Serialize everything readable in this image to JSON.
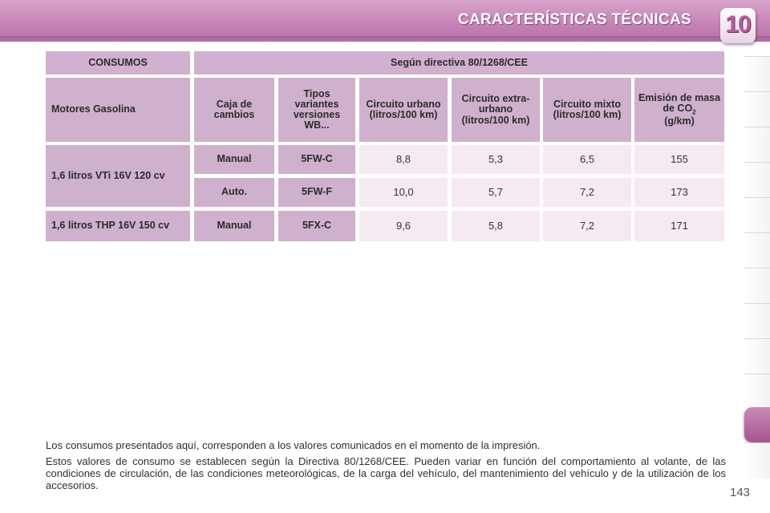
{
  "header": {
    "title": "CARACTERÍSTICAS TÉCNICAS",
    "chapter": "10"
  },
  "table": {
    "top_left": "CONSUMOS",
    "top_right": "Según directiva 80/1268/CEE",
    "col_headers": {
      "engine": "Motores Gasolina",
      "gearbox": "Caja de cambios",
      "types": "Tipos variantes versiones WB...",
      "urban": "Circuito urbano (litros/100 km)",
      "extra_urban": "Circuito extra-urbano (litros/100 km)",
      "mixed": "Circuito mixto (litros/100 km)",
      "co2_prefix": "Emisión de masa de CO",
      "co2_sub": "2",
      "co2_unit": "(g/km)"
    },
    "rows": [
      {
        "engine": "1,6 litros VTi 16V 120 cv",
        "gearbox": "Manual",
        "type": "5FW-C",
        "urban": "8,8",
        "extra_urban": "5,3",
        "mixed": "6,5",
        "co2": "155"
      },
      {
        "engine": "",
        "gearbox": "Auto.",
        "type": "5FW-F",
        "urban": "10,0",
        "extra_urban": "5,7",
        "mixed": "7,2",
        "co2": "173"
      },
      {
        "engine": "1,6 litros THP 16V 150 cv",
        "gearbox": "Manual",
        "type": "5FX-C",
        "urban": "9,6",
        "extra_urban": "5,8",
        "mixed": "7,2",
        "co2": "171"
      }
    ]
  },
  "notes": [
    "Los consumos presentados aquí, corresponden a los valores comunicados en el momento de la impresión.",
    "Estos valores de consumo se establecen según la Directiva 80/1268/CEE. Pueden variar en función del comportamiento al volante, de las condiciones de circulación, de las condiciones meteorológicas, de la carga del vehículo, del mantenimiento del vehículo y de la utilización de los accesorios."
  ],
  "page_number": "143",
  "colors": {
    "header_band": "#c98ab9",
    "header_cell": "#d1b1cf",
    "value_cell": "#f5e9f2",
    "active_tab": "#b86fa6"
  }
}
